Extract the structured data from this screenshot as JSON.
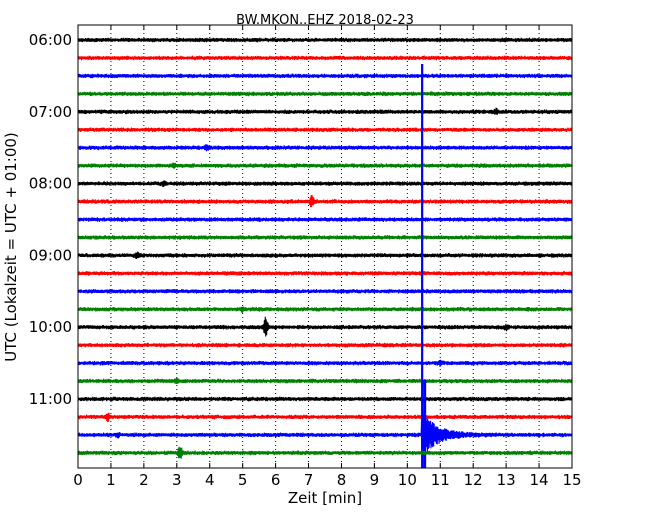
{
  "chart_data": {
    "type": "line",
    "title": "BW.MKON..EHZ 2018-02-23",
    "xlabel": "Zeit  [min]",
    "ylabel": "UTC (Lokalzeit = UTC + 01:00)",
    "xlim": [
      0,
      15
    ],
    "x_ticks": [
      "0",
      "1",
      "2",
      "3",
      "4",
      "5",
      "6",
      "7",
      "8",
      "9",
      "10",
      "11",
      "12",
      "13",
      "14",
      "15"
    ],
    "y_tick_labels": [
      "06:00",
      "07:00",
      "08:00",
      "09:00",
      "10:00",
      "11:00"
    ],
    "y_tick_rows": [
      0,
      4,
      8,
      12,
      16,
      20
    ],
    "grid": "vertical-dotted",
    "row_interval_min": 15,
    "series_colors": [
      "#000000",
      "#ff0000",
      "#0000ff",
      "#008000"
    ],
    "rows": [
      {
        "start": "06:00",
        "color": "#000000",
        "events": []
      },
      {
        "start": "06:15",
        "color": "#ff0000",
        "events": []
      },
      {
        "start": "06:30",
        "color": "#0000ff",
        "events": []
      },
      {
        "start": "06:45",
        "color": "#008000",
        "events": []
      },
      {
        "start": "07:00",
        "color": "#000000",
        "events": [
          {
            "t": 12.7,
            "amp": 0.35
          }
        ]
      },
      {
        "start": "07:15",
        "color": "#ff0000",
        "events": []
      },
      {
        "start": "07:30",
        "color": "#0000ff",
        "events": [
          {
            "t": 3.9,
            "amp": 0.35
          }
        ]
      },
      {
        "start": "07:45",
        "color": "#008000",
        "events": [
          {
            "t": 2.9,
            "amp": 0.3
          }
        ]
      },
      {
        "start": "08:00",
        "color": "#000000",
        "events": [
          {
            "t": 2.6,
            "amp": 0.3
          }
        ]
      },
      {
        "start": "08:15",
        "color": "#ff0000",
        "events": [
          {
            "t": 7.1,
            "amp": 0.9
          }
        ]
      },
      {
        "start": "08:30",
        "color": "#0000ff",
        "events": []
      },
      {
        "start": "08:45",
        "color": "#008000",
        "events": []
      },
      {
        "start": "09:00",
        "color": "#000000",
        "events": [
          {
            "t": 1.8,
            "amp": 0.4
          }
        ]
      },
      {
        "start": "09:15",
        "color": "#ff0000",
        "events": []
      },
      {
        "start": "09:30",
        "color": "#0000ff",
        "events": []
      },
      {
        "start": "09:45",
        "color": "#008000",
        "events": [
          {
            "t": 5.0,
            "amp": 0.3
          }
        ]
      },
      {
        "start": "10:00",
        "color": "#000000",
        "events": [
          {
            "t": 5.7,
            "amp": 1.5
          },
          {
            "t": 13.0,
            "amp": 0.35
          }
        ]
      },
      {
        "start": "10:15",
        "color": "#ff0000",
        "events": []
      },
      {
        "start": "10:30",
        "color": "#0000ff",
        "events": [
          {
            "t": 11.0,
            "amp": 0.3
          }
        ]
      },
      {
        "start": "10:45",
        "color": "#008000",
        "events": [
          {
            "t": 3.0,
            "amp": 0.3
          }
        ]
      },
      {
        "start": "11:00",
        "color": "#000000",
        "events": []
      },
      {
        "start": "11:15",
        "color": "#ff0000",
        "events": [
          {
            "t": 0.9,
            "amp": 0.6
          }
        ]
      },
      {
        "start": "11:30",
        "color": "#0000ff",
        "events": [
          {
            "t": 10.45,
            "amp": 22,
            "decay": 0.45
          },
          {
            "t": 1.2,
            "amp": 0.3
          }
        ]
      },
      {
        "start": "11:45",
        "color": "#008000",
        "events": [
          {
            "t": 3.1,
            "amp": 1.0
          }
        ]
      }
    ]
  }
}
